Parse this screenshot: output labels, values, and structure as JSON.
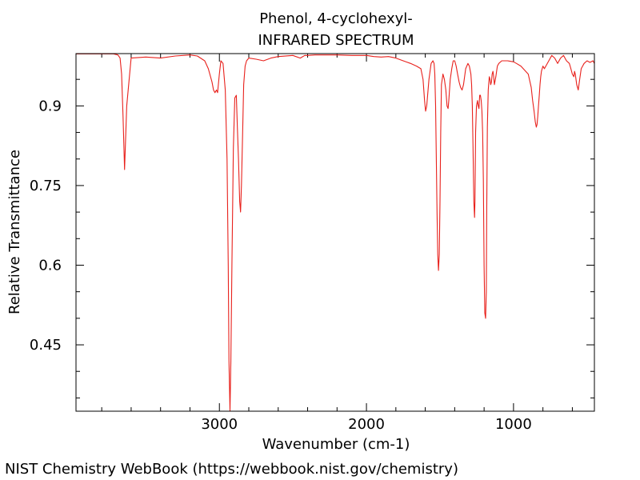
{
  "chart_data": {
    "type": "line",
    "title": "Phenol, 4-cyclohexyl-",
    "subtitle": "INFRARED SPECTRUM",
    "xlabel": "Wavenumber (cm-1)",
    "ylabel": "Relative Transmittance",
    "xlim": [
      3975,
      450
    ],
    "ylim": [
      0.325,
      0.9985
    ],
    "x_reversed": true,
    "grid": false,
    "xticks": [
      {
        "value": 3000,
        "label": "3000"
      },
      {
        "value": 2000,
        "label": "2000"
      },
      {
        "value": 1000,
        "label": "1000"
      }
    ],
    "yticks": [
      {
        "value": 0.9,
        "label": "0.9"
      },
      {
        "value": 0.75,
        "label": "0.75"
      },
      {
        "value": 0.6,
        "label": "0.6"
      },
      {
        "value": 0.45,
        "label": "0.45"
      }
    ],
    "series": [
      {
        "color": "#e8211c",
        "x": [
          3975,
          3850,
          3720,
          3690,
          3675,
          3665,
          3655,
          3645,
          3630,
          3600,
          3500,
          3400,
          3300,
          3200,
          3150,
          3100,
          3075,
          3050,
          3040,
          3030,
          3020,
          3012,
          3000,
          2990,
          2975,
          2960,
          2948,
          2940,
          2935,
          2928,
          2922,
          2915,
          2905,
          2895,
          2885,
          2878,
          2870,
          2862,
          2856,
          2850,
          2842,
          2835,
          2825,
          2815,
          2800,
          2750,
          2700,
          2650,
          2600,
          2500,
          2450,
          2420,
          2400,
          2350,
          2200,
          2100,
          2000,
          1950,
          1900,
          1850,
          1800,
          1750,
          1700,
          1660,
          1630,
          1615,
          1605,
          1598,
          1590,
          1575,
          1560,
          1548,
          1540,
          1535,
          1530,
          1525,
          1520,
          1515,
          1510,
          1505,
          1500,
          1495,
          1490,
          1480,
          1470,
          1460,
          1452,
          1445,
          1440,
          1430,
          1420,
          1410,
          1400,
          1390,
          1380,
          1370,
          1360,
          1350,
          1340,
          1325,
          1310,
          1300,
          1290,
          1285,
          1280,
          1275,
          1270,
          1265,
          1262,
          1258,
          1252,
          1245,
          1240,
          1235,
          1230,
          1225,
          1220,
          1215,
          1210,
          1205,
          1200,
          1195,
          1190,
          1185,
          1182,
          1178,
          1172,
          1165,
          1160,
          1155,
          1150,
          1145,
          1140,
          1135,
          1130,
          1120,
          1110,
          1100,
          1080,
          1060,
          1040,
          1000,
          980,
          950,
          900,
          880,
          870,
          860,
          852,
          845,
          840,
          835,
          830,
          825,
          820,
          815,
          810,
          805,
          800,
          790,
          780,
          760,
          740,
          720,
          700,
          680,
          660,
          640,
          620,
          610,
          600,
          590,
          585,
          580,
          575,
          570,
          560,
          550,
          540,
          530,
          520,
          500,
          480,
          460,
          450
        ],
        "y": [
          0.998,
          0.998,
          0.998,
          0.996,
          0.99,
          0.96,
          0.88,
          0.78,
          0.9,
          0.99,
          0.992,
          0.99,
          0.994,
          0.996,
          0.994,
          0.985,
          0.97,
          0.945,
          0.93,
          0.925,
          0.93,
          0.925,
          0.96,
          0.985,
          0.98,
          0.93,
          0.8,
          0.6,
          0.42,
          0.32,
          0.42,
          0.6,
          0.82,
          0.915,
          0.92,
          0.86,
          0.8,
          0.72,
          0.7,
          0.75,
          0.85,
          0.94,
          0.975,
          0.985,
          0.99,
          0.988,
          0.985,
          0.99,
          0.993,
          0.995,
          0.99,
          0.995,
          0.995,
          0.996,
          0.996,
          0.995,
          0.995,
          0.993,
          0.992,
          0.993,
          0.99,
          0.985,
          0.98,
          0.975,
          0.97,
          0.95,
          0.91,
          0.89,
          0.9,
          0.95,
          0.98,
          0.985,
          0.98,
          0.96,
          0.9,
          0.8,
          0.7,
          0.62,
          0.59,
          0.62,
          0.72,
          0.85,
          0.94,
          0.96,
          0.95,
          0.93,
          0.9,
          0.895,
          0.91,
          0.95,
          0.97,
          0.985,
          0.985,
          0.975,
          0.96,
          0.945,
          0.935,
          0.93,
          0.94,
          0.97,
          0.98,
          0.975,
          0.96,
          0.94,
          0.9,
          0.82,
          0.72,
          0.69,
          0.72,
          0.85,
          0.9,
          0.91,
          0.9,
          0.895,
          0.92,
          0.92,
          0.91,
          0.89,
          0.85,
          0.76,
          0.6,
          0.51,
          0.5,
          0.55,
          0.7,
          0.86,
          0.93,
          0.955,
          0.95,
          0.94,
          0.945,
          0.96,
          0.965,
          0.955,
          0.94,
          0.955,
          0.975,
          0.98,
          0.985,
          0.985,
          0.985,
          0.983,
          0.98,
          0.975,
          0.96,
          0.935,
          0.91,
          0.89,
          0.87,
          0.86,
          0.865,
          0.88,
          0.9,
          0.92,
          0.94,
          0.955,
          0.965,
          0.97,
          0.975,
          0.97,
          0.975,
          0.985,
          0.995,
          0.99,
          0.98,
          0.99,
          0.995,
          0.985,
          0.98,
          0.97,
          0.96,
          0.955,
          0.965,
          0.96,
          0.95,
          0.94,
          0.93,
          0.95,
          0.97,
          0.975,
          0.98,
          0.985,
          0.982,
          0.985,
          0.98
        ]
      }
    ]
  },
  "footer": {
    "credit": "NIST Chemistry WebBook (https://webbook.nist.gov/chemistry)"
  }
}
